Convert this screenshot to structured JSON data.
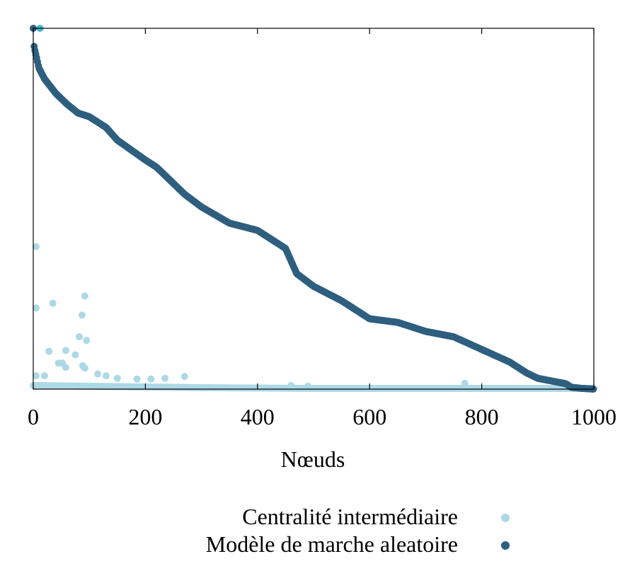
{
  "chart_data": {
    "type": "scatter",
    "title": "",
    "xlabel": "Nœuds",
    "ylabel": "",
    "xlim": [
      0,
      1000
    ],
    "ylim": [
      0,
      1
    ],
    "x_ticks": [
      "0",
      "200",
      "400",
      "600",
      "800",
      "1000"
    ],
    "grid": false,
    "legend_position": "bottom-right",
    "series": [
      {
        "name": "Centralité intermédiaire",
        "color": "#add8e6",
        "outlier_points": [
          [
            0,
            1.0
          ],
          [
            5,
            0.395
          ],
          [
            5,
            0.225
          ],
          [
            35,
            0.238
          ],
          [
            92,
            0.258
          ],
          [
            87,
            0.205
          ],
          [
            82,
            0.145
          ],
          [
            95,
            0.135
          ],
          [
            28,
            0.105
          ],
          [
            58,
            0.107
          ],
          [
            75,
            0.095
          ],
          [
            45,
            0.072
          ],
          [
            52,
            0.072
          ],
          [
            58,
            0.06
          ],
          [
            88,
            0.065
          ],
          [
            92,
            0.058
          ],
          [
            5,
            0.037
          ],
          [
            20,
            0.037
          ],
          [
            115,
            0.042
          ],
          [
            130,
            0.037
          ],
          [
            150,
            0.03
          ],
          [
            185,
            0.028
          ],
          [
            210,
            0.028
          ],
          [
            235,
            0.03
          ],
          [
            270,
            0.035
          ],
          [
            460,
            0.01
          ],
          [
            490,
            0.008
          ],
          [
            770,
            0.016
          ]
        ],
        "baseline_points": [
          [
            0,
            0.01
          ],
          [
            100,
            0.008
          ],
          [
            200,
            0.006
          ],
          [
            300,
            0.004
          ],
          [
            400,
            0.003
          ],
          [
            500,
            0.002
          ],
          [
            600,
            0.002
          ],
          [
            700,
            0.002
          ],
          [
            800,
            0.002
          ],
          [
            900,
            0.002
          ],
          [
            1000,
            0.002
          ]
        ]
      },
      {
        "name": "Modèle de marche aleatoire",
        "color": "#2e5f7f",
        "points": [
          [
            0,
            1.0
          ],
          [
            1,
            0.955
          ],
          [
            2,
            0.945
          ],
          [
            5,
            0.925
          ],
          [
            10,
            0.89
          ],
          [
            20,
            0.86
          ],
          [
            40,
            0.82
          ],
          [
            60,
            0.79
          ],
          [
            80,
            0.765
          ],
          [
            100,
            0.755
          ],
          [
            130,
            0.725
          ],
          [
            150,
            0.69
          ],
          [
            200,
            0.635
          ],
          [
            220,
            0.615
          ],
          [
            250,
            0.57
          ],
          [
            270,
            0.54
          ],
          [
            300,
            0.505
          ],
          [
            350,
            0.46
          ],
          [
            400,
            0.44
          ],
          [
            450,
            0.39
          ],
          [
            470,
            0.32
          ],
          [
            500,
            0.285
          ],
          [
            550,
            0.245
          ],
          [
            600,
            0.195
          ],
          [
            650,
            0.185
          ],
          [
            700,
            0.16
          ],
          [
            750,
            0.145
          ],
          [
            800,
            0.11
          ],
          [
            850,
            0.075
          ],
          [
            880,
            0.045
          ],
          [
            900,
            0.03
          ],
          [
            950,
            0.015
          ],
          [
            960,
            0.005
          ],
          [
            980,
            0.002
          ],
          [
            1000,
            0.0
          ]
        ]
      }
    ]
  }
}
